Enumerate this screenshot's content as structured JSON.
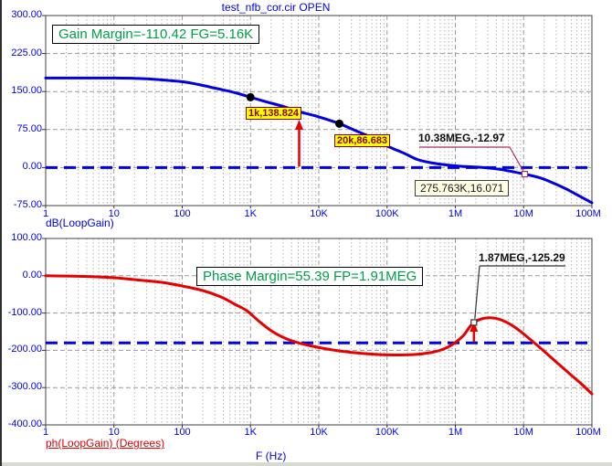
{
  "window": {
    "title": "test_nfb_cor.cir OPEN"
  },
  "gain_plot": {
    "annotation": "Gain Margin=-110.42 FG=5.16K",
    "y_ticks": [
      "300.00",
      "225.00",
      "150.00",
      "75.00",
      "0.00",
      "-75.00"
    ],
    "axis_label": "dB(LoopGain)",
    "cursor_labels": [
      "1k,138.824",
      "20k,86.683"
    ],
    "point_label": "10.38MEG,-12.97",
    "readout": "275.763K,16.071"
  },
  "phase_plot": {
    "annotation": "Phase Margin=55.39 FP=1.91MEG",
    "y_ticks": [
      "100.00",
      "0.00",
      "-100.00",
      "-200.00",
      "-300.00",
      "-400.00"
    ],
    "axis_label": "ph(LoopGain) (Degrees)",
    "point_label": "1.87MEG,-125.29"
  },
  "x_axis": {
    "ticks": [
      "1",
      "10",
      "100",
      "1K",
      "10K",
      "100K",
      "1M",
      "10M",
      "100M"
    ],
    "label": "F (Hz)"
  },
  "colors": {
    "curve_blue": "#0000e0",
    "curve_red": "#e60000",
    "ref_dashed_blue": "#0000e0",
    "annotation_green": "#009e49",
    "cursor_yellow_bg": "#ffff00",
    "cursor_text": "#8b0000",
    "callout_crimson": "#b03060",
    "grid_major": "#9a9a9a",
    "grid_minor": "#b5b5b5",
    "axis_text_blue": "#0000ee"
  },
  "chart_data": [
    {
      "type": "line",
      "title": "test_nfb_cor.cir OPEN",
      "xlabel": "F (Hz)",
      "ylabel": "dB(LoopGain)",
      "x_scale": "log",
      "xlim": [
        1,
        100000000
      ],
      "ylim": [
        -75,
        300
      ],
      "y_tick_values": [
        300,
        225,
        150,
        75,
        0,
        -75
      ],
      "x_tick_values": [
        1,
        10,
        100,
        1000,
        10000,
        100000,
        1000000,
        10000000,
        100000000
      ],
      "grid": true,
      "annotation": "Gain Margin=-110.42 FG=5.16K",
      "reference_line_y": 0,
      "margin_arrow_x": 5160,
      "series": [
        {
          "name": "dB(LoopGain)",
          "points": [
            [
              1,
              176.7
            ],
            [
              10,
              176.7
            ],
            [
              23,
              175.8
            ],
            [
              50,
              173.1
            ],
            [
              100,
              169.5
            ],
            [
              170,
              164.1
            ],
            [
              320,
              155.9
            ],
            [
              590,
              147.8
            ],
            [
              1000,
              138.824
            ],
            [
              1700,
              129.8
            ],
            [
              3000,
              120.8
            ],
            [
              5160,
              110.42
            ],
            [
              10000,
              100.1
            ],
            [
              20000,
              86.683
            ],
            [
              33000,
              73.9
            ],
            [
              53000,
              62.2
            ],
            [
              81000,
              48.5
            ],
            [
              121000,
              37.7
            ],
            [
              181000,
              27.8
            ],
            [
              275763,
              16.071
            ],
            [
              440000,
              9.5
            ],
            [
              700000,
              5.5
            ],
            [
              1110000,
              2.8
            ],
            [
              1910000,
              1.2
            ],
            [
              2600000,
              0
            ],
            [
              4460000,
              -3.4
            ],
            [
              10380000,
              -12.97
            ],
            [
              17900000,
              -20.7
            ],
            [
              28300000,
              -31.5
            ],
            [
              45000000,
              -44.2
            ],
            [
              67000000,
              -56.8
            ],
            [
              100000000,
              -69.4
            ]
          ]
        }
      ],
      "dot_markers": [
        [
          1000,
          138.824
        ],
        [
          20000,
          86.683
        ]
      ],
      "square_marker": [
        10380000,
        -12.97
      ]
    },
    {
      "type": "line",
      "xlabel": "F (Hz)",
      "ylabel": "ph(LoopGain) (Degrees)",
      "x_scale": "log",
      "xlim": [
        1,
        100000000
      ],
      "ylim": [
        -400,
        100
      ],
      "y_tick_values": [
        100,
        0,
        -100,
        -200,
        -300,
        -400
      ],
      "x_tick_values": [
        1,
        10,
        100,
        1000,
        10000,
        100000,
        1000000,
        10000000,
        100000000
      ],
      "grid": true,
      "annotation": "Phase Margin=55.39 FP=1.91MEG",
      "reference_line_y": -180,
      "margin_arrow_x": 1870000,
      "series": [
        {
          "name": "ph(LoopGain)",
          "points": [
            [
              1,
              0
            ],
            [
              3.6,
              -1.7
            ],
            [
              10,
              -5.4
            ],
            [
              23,
              -11.5
            ],
            [
              50,
              -17.7
            ],
            [
              100,
              -27.5
            ],
            [
              200,
              -39.7
            ],
            [
              370,
              -56.9
            ],
            [
              590,
              -76.5
            ],
            [
              880,
              -93.7
            ],
            [
              1350,
              -123
            ],
            [
              2020,
              -147.7
            ],
            [
              3200,
              -167.3
            ],
            [
              5160,
              -180.6
            ],
            [
              8050,
              -188.9
            ],
            [
              14900,
              -198
            ],
            [
              32200,
              -206.1
            ],
            [
              69600,
              -211
            ],
            [
              129000,
              -212.4
            ],
            [
              239000,
              -211.5
            ],
            [
              416000,
              -206.6
            ],
            [
              640000,
              -198
            ],
            [
              927000,
              -183.3
            ],
            [
              1300000,
              -161.2
            ],
            [
              1610000,
              -137.9
            ],
            [
              1870000,
              -125.29
            ],
            [
              2410000,
              -115.8
            ],
            [
              3270000,
              -112.8
            ],
            [
              4460000,
              -117
            ],
            [
              6250000,
              -129.3
            ],
            [
              8770000,
              -147.7
            ],
            [
              12300000,
              -169.8
            ],
            [
              16800000,
              -190.6
            ],
            [
              24300000,
              -216.4
            ],
            [
              35100000,
              -242.1
            ],
            [
              50800000,
              -267.9
            ],
            [
              71300000,
              -291.2
            ],
            [
              100000000,
              -317
            ]
          ]
        }
      ],
      "square_marker": [
        1870000,
        -125.29
      ]
    }
  ]
}
